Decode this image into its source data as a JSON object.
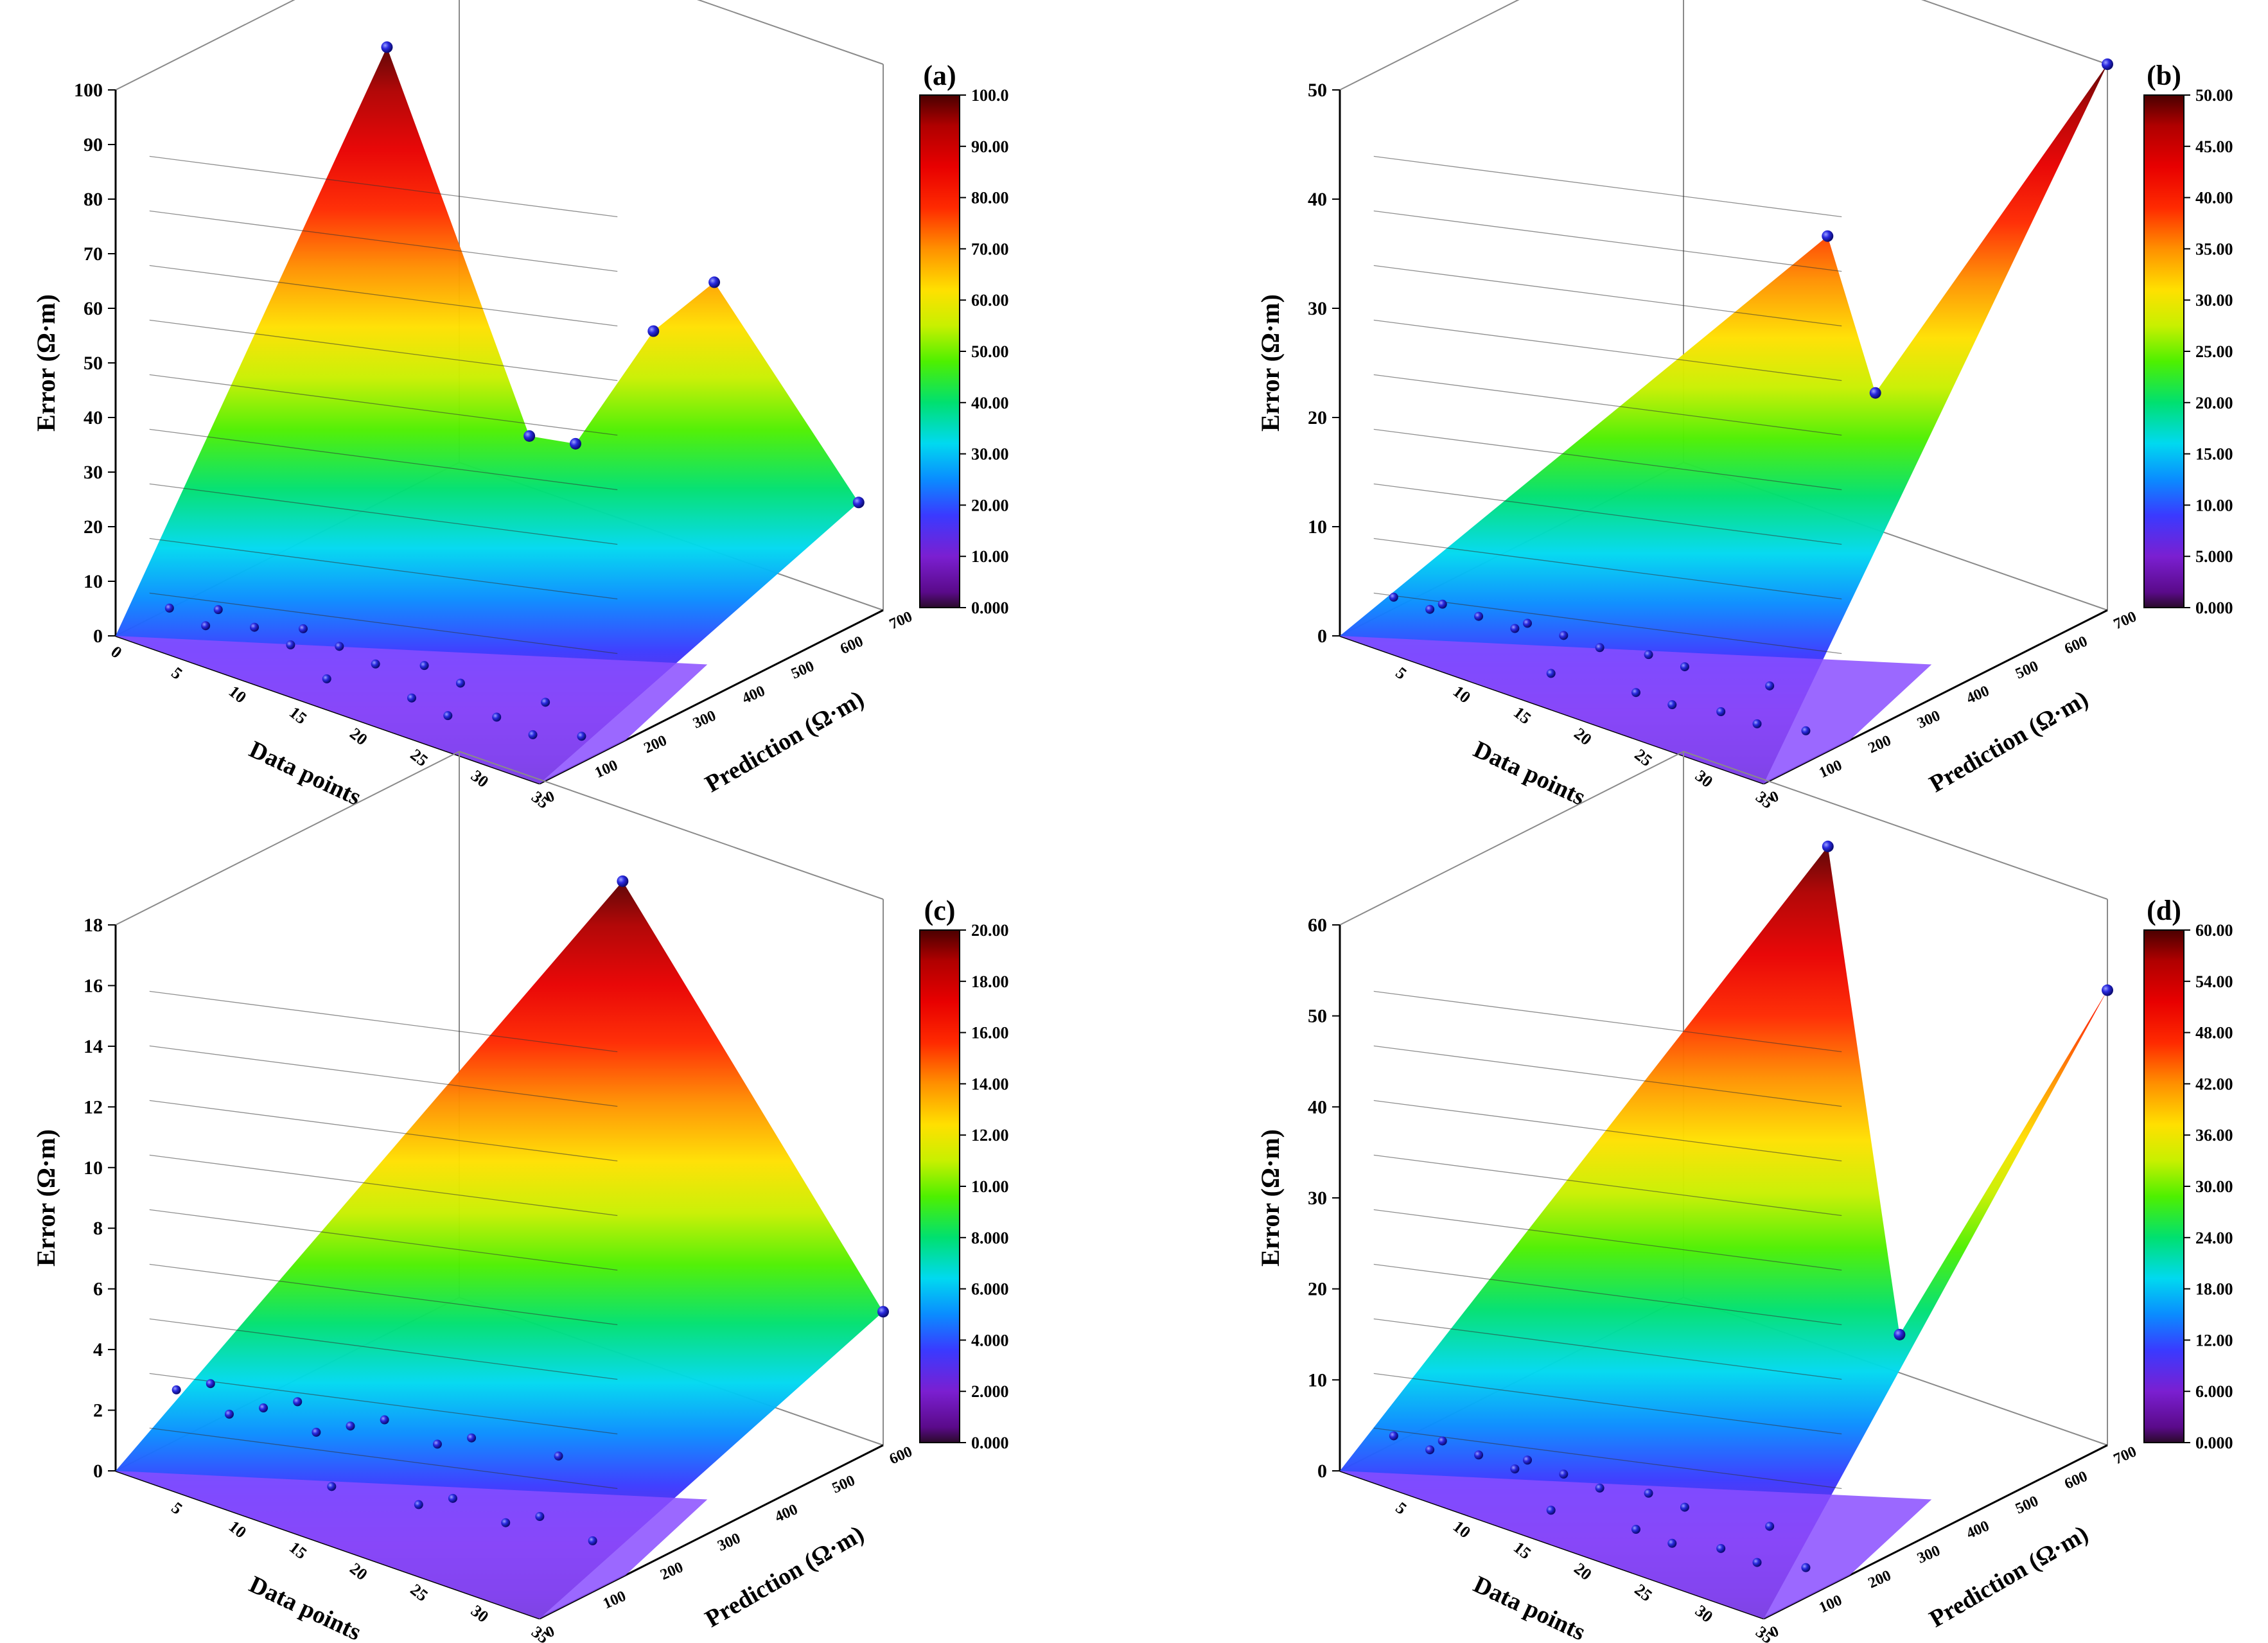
{
  "chart_data": [
    {
      "type": "3d-surface",
      "panel_label": "(a)",
      "xlabel": "Data points",
      "ylabel": "Prediction (Ω·m)",
      "zlabel": "Error (Ω·m)",
      "x_ticks": [
        "0",
        "5",
        "10",
        "15",
        "20",
        "25",
        "30",
        "35"
      ],
      "y_ticks": [
        "0",
        "100",
        "200",
        "300",
        "400",
        "500",
        "600",
        "700"
      ],
      "z_ticks": [
        "0",
        "10",
        "20",
        "30",
        "40",
        "50",
        "60",
        "70",
        "80",
        "90",
        "100"
      ],
      "xlim": [
        0,
        35
      ],
      "ylim": [
        0,
        700
      ],
      "zlim": [
        0,
        100
      ],
      "colorbar_ticks": [
        "0.000",
        "10.00",
        "20.00",
        "30.00",
        "40.00",
        "50.00",
        "60.00",
        "70.00",
        "80.00",
        "90.00",
        "100.0"
      ],
      "colorbar_range": [
        0,
        100
      ],
      "colormap": "rainbow",
      "peaks": [
        {
          "x": 7,
          "y": 380,
          "z": 96
        },
        {
          "x": 32,
          "y": 430,
          "z": 70
        },
        {
          "x": 29,
          "y": 380,
          "z": 61
        },
        {
          "x": 22,
          "y": 300,
          "z": 40
        },
        {
          "x": 25,
          "y": 320,
          "z": 40
        },
        {
          "x": 35,
          "y": 650,
          "z": 22
        }
      ]
    },
    {
      "type": "3d-surface",
      "panel_label": "(b)",
      "xlabel": "Data points",
      "ylabel": "Prediction (Ω·m)",
      "zlabel": "Error (Ω·m)",
      "x_ticks": [
        "5",
        "10",
        "15",
        "20",
        "25",
        "30",
        "35"
      ],
      "y_ticks": [
        "0",
        "100",
        "200",
        "300",
        "400",
        "500",
        "600",
        "700"
      ],
      "z_ticks": [
        "0",
        "10",
        "20",
        "30",
        "40",
        "50"
      ],
      "xlim": [
        0,
        35
      ],
      "ylim": [
        0,
        700
      ],
      "zlim": [
        0,
        50
      ],
      "colorbar_ticks": [
        "0.000",
        "5.000",
        "10.00",
        "15.00",
        "20.00",
        "25.00",
        "30.00",
        "35.00",
        "40.00",
        "45.00",
        "50.00"
      ],
      "colorbar_range": [
        0,
        50
      ],
      "colormap": "rainbow",
      "peaks": [
        {
          "x": 35,
          "y": 700,
          "z": 50
        },
        {
          "x": 20,
          "y": 500,
          "z": 33
        },
        {
          "x": 28,
          "y": 400,
          "z": 24
        }
      ]
    },
    {
      "type": "3d-surface",
      "panel_label": "(c)",
      "xlabel": "Data points",
      "ylabel": "Prediction (Ω·m)",
      "zlabel": "Error (Ω·m)",
      "x_ticks": [
        "5",
        "10",
        "15",
        "20",
        "25",
        "30",
        "35"
      ],
      "y_ticks": [
        "0",
        "100",
        "200",
        "300",
        "400",
        "500",
        "600"
      ],
      "z_ticks": [
        "0",
        "2",
        "4",
        "6",
        "8",
        "10",
        "12",
        "14",
        "16",
        "18"
      ],
      "xlim": [
        0,
        35
      ],
      "ylim": [
        0,
        600
      ],
      "zlim": [
        0,
        18
      ],
      "colorbar_ticks": [
        "0.000",
        "2.000",
        "4.000",
        "6.000",
        "8.000",
        "10.00",
        "12.00",
        "14.00",
        "16.00",
        "18.00",
        "20.00"
      ],
      "colorbar_range": [
        0,
        20
      ],
      "colormap": "rainbow",
      "peaks": [
        {
          "x": 22,
          "y": 420,
          "z": 18.5
        },
        {
          "x": 35,
          "y": 600,
          "z": 4.4
        }
      ]
    },
    {
      "type": "3d-surface",
      "panel_label": "(d)",
      "xlabel": "Data points",
      "ylabel": "Prediction (Ω·m)",
      "zlabel": "Error (Ω·m)",
      "x_ticks": [
        "5",
        "10",
        "15",
        "20",
        "25",
        "30",
        "35"
      ],
      "y_ticks": [
        "0",
        "100",
        "200",
        "300",
        "400",
        "500",
        "600",
        "700"
      ],
      "z_ticks": [
        "0",
        "10",
        "20",
        "30",
        "40",
        "50",
        "60"
      ],
      "xlim": [
        0,
        35
      ],
      "ylim": [
        0,
        700
      ],
      "zlim": [
        0,
        60
      ],
      "colorbar_ticks": [
        "0.000",
        "6.000",
        "12.00",
        "18.00",
        "24.00",
        "30.00",
        "36.00",
        "42.00",
        "48.00",
        "54.00",
        "60.00"
      ],
      "colorbar_range": [
        0,
        60
      ],
      "colormap": "rainbow",
      "peaks": [
        {
          "x": 18,
          "y": 550,
          "z": 62
        },
        {
          "x": 35,
          "y": 700,
          "z": 50
        },
        {
          "x": 30,
          "y": 400,
          "z": 18
        }
      ]
    }
  ]
}
